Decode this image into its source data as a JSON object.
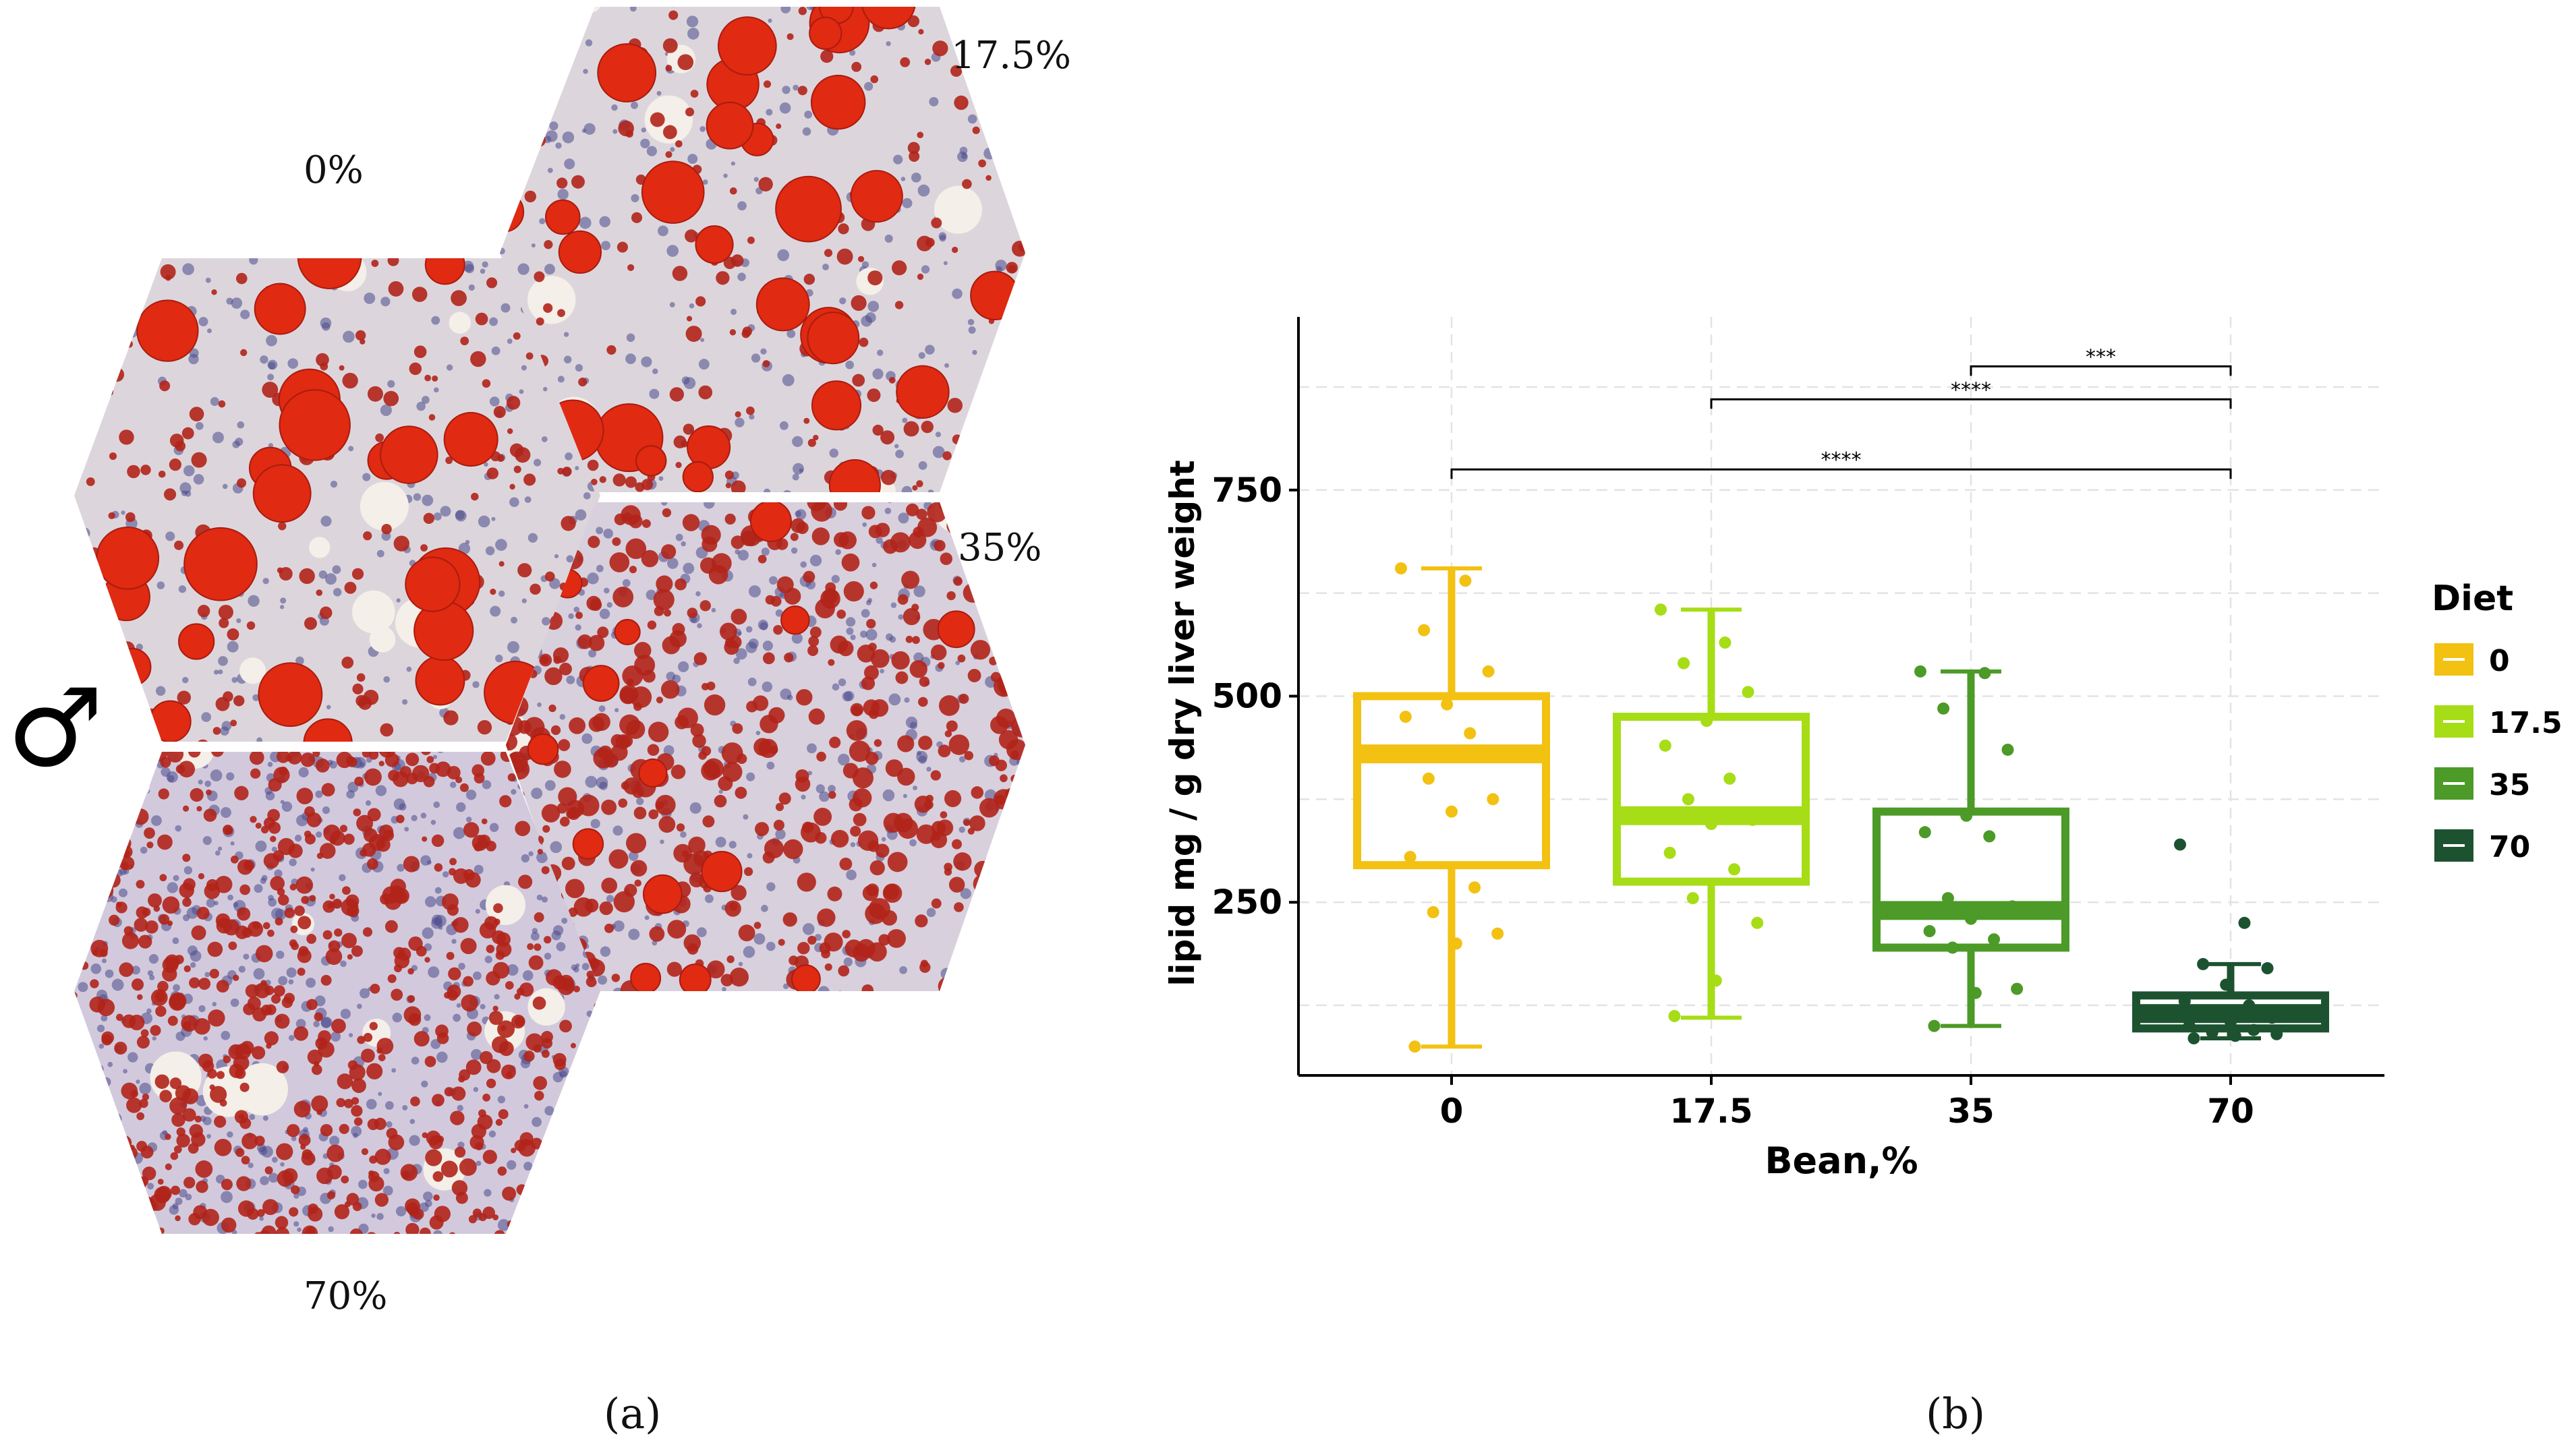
{
  "panel_a": {
    "labels": {
      "p0": "0%",
      "p17": "17.5%",
      "p35": "35%",
      "p70": "70%"
    },
    "sex_symbol": "♂",
    "caption": "(a)",
    "colors": {
      "lipid": "#e02a12",
      "stroma": "#d9d4dc",
      "nuclei": "#4a4a8c"
    }
  },
  "panel_b": {
    "caption": "(b)",
    "legend_title": "Diet",
    "significance": [
      "***",
      "****",
      "****"
    ]
  },
  "chart_data": {
    "type": "box",
    "xlabel": "Bean,%",
    "ylabel": "lipid mg / g dry liver weight",
    "categories": [
      "0",
      "17.5",
      "35",
      "70"
    ],
    "colors": [
      "#f2c112",
      "#a6dd16",
      "#4c9a27",
      "#1d5231"
    ],
    "ylim": [
      40,
      960
    ],
    "yticks": [
      250,
      500,
      750
    ],
    "minor_grid": [
      125,
      375,
      625,
      875
    ],
    "boxes": [
      {
        "min": 75,
        "q1": 295,
        "median": 430,
        "q3": 500,
        "max": 655
      },
      {
        "min": 110,
        "q1": 275,
        "median": 355,
        "q3": 475,
        "max": 605
      },
      {
        "min": 100,
        "q1": 195,
        "median": 240,
        "q3": 360,
        "max": 530
      },
      {
        "min": 85,
        "q1": 97,
        "median": 115,
        "q3": 137,
        "max": 175
      }
    ],
    "points": [
      [
        655,
        640,
        580,
        530,
        490,
        475,
        455,
        400,
        375,
        360,
        305,
        268,
        238,
        212,
        200,
        75
      ],
      [
        605,
        565,
        540,
        505,
        470,
        440,
        400,
        375,
        350,
        345,
        310,
        290,
        255,
        225,
        155,
        112
      ],
      [
        530,
        528,
        485,
        435,
        355,
        335,
        330,
        255,
        245,
        230,
        215,
        205,
        195,
        145,
        140,
        100
      ],
      [
        320,
        225,
        175,
        170,
        150,
        130,
        125,
        115,
        110,
        105,
        100,
        95,
        92,
        90,
        88,
        85
      ]
    ],
    "comparisons": [
      {
        "from": "35",
        "to": "70",
        "y": 900,
        "label": "***"
      },
      {
        "from": "17.5",
        "to": "70",
        "y": 860,
        "label": "****"
      },
      {
        "from": "0",
        "to": "70",
        "y": 775,
        "label": "****"
      }
    ],
    "legend": {
      "title": "Diet",
      "entries": [
        "0",
        "17.5",
        "35",
        "70"
      ],
      "position": "right"
    }
  }
}
